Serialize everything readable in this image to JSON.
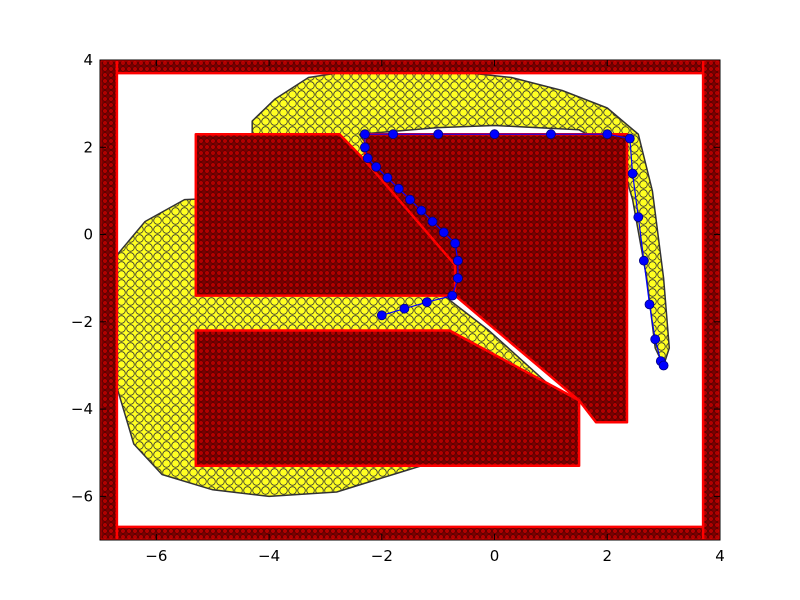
{
  "chart_data": {
    "type": "scatter",
    "title": "",
    "xlabel": "",
    "ylabel": "",
    "xlim": [
      -7,
      4
    ],
    "ylim": [
      -7,
      4
    ],
    "grid": false,
    "x_ticks": [
      -6,
      -4,
      -2,
      0,
      2,
      4
    ],
    "y_ticks": [
      -6,
      -4,
      -2,
      0,
      2,
      4
    ],
    "x_tick_labels": [
      "−6",
      "−4",
      "−2",
      "0",
      "2",
      "4"
    ],
    "y_tick_labels": [
      "−6",
      "−4",
      "−2",
      "0",
      "2",
      "4"
    ],
    "colors": {
      "obstacle_fill": "#8b0000",
      "obstacle_edge": "#ff0000",
      "explored_fill": "#ffff22",
      "explored_edge": "#333333",
      "path_fill": "#0000ff",
      "path_edge": "#000080"
    },
    "series": [
      {
        "role": "explored-region",
        "marker": "circle",
        "polygon": [
          [
            -6.85,
            -0.7
          ],
          [
            -6.8,
            -1.8
          ],
          [
            -6.7,
            -3.5
          ],
          [
            -6.4,
            -4.8
          ],
          [
            -5.9,
            -5.5
          ],
          [
            -5.0,
            -5.85
          ],
          [
            -4.0,
            -6.0
          ],
          [
            -2.8,
            -5.9
          ],
          [
            -1.8,
            -5.5
          ],
          [
            -0.8,
            -5.1
          ],
          [
            0.3,
            -4.6
          ],
          [
            1.1,
            -3.6
          ],
          [
            0.5,
            -2.9
          ],
          [
            -0.1,
            -2.2
          ],
          [
            -0.9,
            -1.4
          ],
          [
            -1.3,
            -0.1
          ],
          [
            -2.0,
            1.0
          ],
          [
            -2.4,
            1.8
          ],
          [
            -3.2,
            2.2
          ],
          [
            -4.3,
            2.1
          ],
          [
            -4.3,
            2.6
          ],
          [
            -3.9,
            3.1
          ],
          [
            -3.3,
            3.6
          ],
          [
            -2.3,
            3.8
          ],
          [
            -1.0,
            3.78
          ],
          [
            0.3,
            3.6
          ],
          [
            1.2,
            3.3
          ],
          [
            2.0,
            2.9
          ],
          [
            2.55,
            2.3
          ],
          [
            2.8,
            1.0
          ],
          [
            3.0,
            -1.0
          ],
          [
            3.1,
            -2.6
          ],
          [
            3.0,
            -3.0
          ],
          [
            2.85,
            -2.6
          ],
          [
            2.7,
            -1.0
          ],
          [
            2.45,
            0.8
          ],
          [
            2.2,
            1.9
          ],
          [
            1.5,
            2.4
          ],
          [
            0.0,
            2.5
          ],
          [
            -1.0,
            2.45
          ],
          [
            -2.4,
            2.3
          ],
          [
            -1.7,
            1.0
          ],
          [
            -5.5,
            0.8
          ],
          [
            -6.2,
            0.3
          ]
        ]
      },
      {
        "role": "obstacles",
        "marker": "circle",
        "polygons": [
          [
            [
              -7.0,
              4.0
            ],
            [
              4.0,
              4.0
            ],
            [
              4.0,
              3.7
            ],
            [
              -7.0,
              3.7
            ]
          ],
          [
            [
              -7.0,
              -6.7
            ],
            [
              4.0,
              -6.7
            ],
            [
              4.0,
              -7.0
            ],
            [
              -7.0,
              -7.0
            ]
          ],
          [
            [
              -7.0,
              4.0
            ],
            [
              -6.7,
              4.0
            ],
            [
              -6.7,
              -7.0
            ],
            [
              -7.0,
              -7.0
            ]
          ],
          [
            [
              3.7,
              4.0
            ],
            [
              4.0,
              4.0
            ],
            [
              4.0,
              -7.0
            ],
            [
              3.7,
              -7.0
            ]
          ],
          [
            [
              -5.3,
              2.3
            ],
            [
              -2.75,
              2.3
            ],
            [
              -2.3,
              1.7
            ],
            [
              -0.65,
              -0.7
            ],
            [
              -0.65,
              -1.4
            ],
            [
              -5.3,
              -1.4
            ]
          ],
          [
            [
              -2.3,
              2.3
            ],
            [
              2.35,
              2.3
            ],
            [
              2.35,
              -4.3
            ],
            [
              1.8,
              -4.3
            ],
            [
              1.5,
              -3.8
            ],
            [
              -0.7,
              -1.4
            ],
            [
              -0.7,
              -0.7
            ],
            [
              -2.3,
              1.7
            ]
          ],
          [
            [
              -5.3,
              -2.2
            ],
            [
              -0.8,
              -2.2
            ],
            [
              1.5,
              -3.8
            ],
            [
              1.5,
              -5.3
            ],
            [
              -5.3,
              -5.3
            ]
          ]
        ]
      },
      {
        "role": "path",
        "marker": "circle",
        "x": [
          -2.0,
          -1.6,
          -1.2,
          -0.75,
          -0.65,
          -0.65,
          -0.7,
          -0.9,
          -1.1,
          -1.3,
          -1.5,
          -1.7,
          -1.9,
          -2.1,
          -2.25,
          -2.3,
          -2.3,
          -1.8,
          -1.0,
          0.0,
          1.0,
          2.0,
          2.4,
          2.45,
          2.55,
          2.65,
          2.75,
          2.85,
          2.95,
          3.0
        ],
        "y": [
          -1.85,
          -1.7,
          -1.55,
          -1.4,
          -1.0,
          -0.6,
          -0.2,
          0.05,
          0.3,
          0.55,
          0.8,
          1.05,
          1.3,
          1.55,
          1.75,
          2.0,
          2.3,
          2.3,
          2.3,
          2.3,
          2.3,
          2.3,
          2.2,
          1.4,
          0.4,
          -0.6,
          -1.6,
          -2.4,
          -2.9,
          -3.0
        ]
      }
    ]
  }
}
